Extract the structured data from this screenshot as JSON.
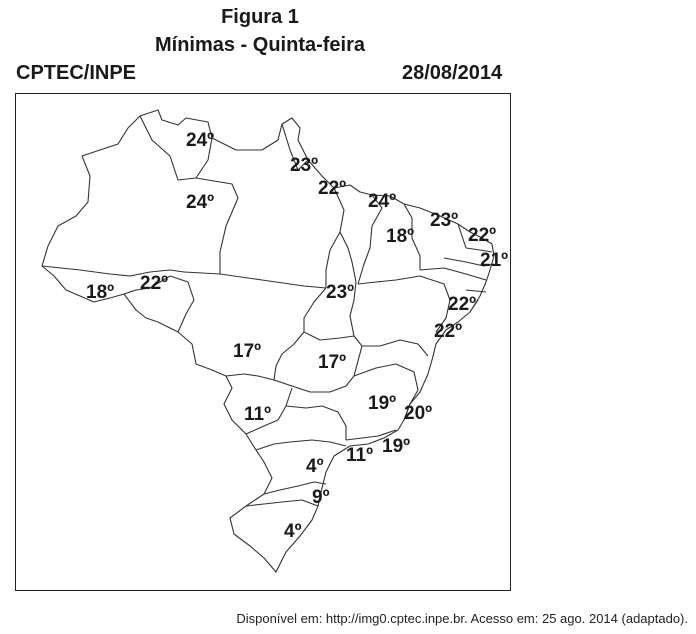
{
  "header": {
    "title": "Figura 1",
    "subtitle": "Mínimas - Quinta-feira",
    "source": "CPTEC/INPE",
    "date": "28/08/2014"
  },
  "map": {
    "temperatures": [
      {
        "state": "Roraima",
        "label": "24º"
      },
      {
        "state": "Amapá",
        "label": "23º"
      },
      {
        "state": "Amazonas",
        "label": "24º"
      },
      {
        "state": "Pará (Belém)",
        "label": "22º"
      },
      {
        "state": "Maranhão",
        "label": "24º"
      },
      {
        "state": "Piauí",
        "label": "18º"
      },
      {
        "state": "Ceará",
        "label": "23º"
      },
      {
        "state": "Rio Grande do Norte",
        "label": "22º"
      },
      {
        "state": "Paraíba",
        "label": "21º"
      },
      {
        "state": "Acre",
        "label": "18º"
      },
      {
        "state": "Rondônia",
        "label": "22º"
      },
      {
        "state": "Tocantins",
        "label": "23º"
      },
      {
        "state": "Alagoas",
        "label": "22º"
      },
      {
        "state": "Sergipe",
        "label": "22º"
      },
      {
        "state": "Mato Grosso",
        "label": "17º"
      },
      {
        "state": "Goiás",
        "label": "17º"
      },
      {
        "state": "Minas Gerais",
        "label": "19º"
      },
      {
        "state": "Espírito Santo",
        "label": "20º"
      },
      {
        "state": "Mato Grosso do Sul",
        "label": "11º"
      },
      {
        "state": "São Paulo",
        "label": "11º"
      },
      {
        "state": "Rio de Janeiro",
        "label": "19º"
      },
      {
        "state": "Paraná",
        "label": "4º"
      },
      {
        "state": "Santa Catarina",
        "label": "9º"
      },
      {
        "state": "Rio Grande do Sul",
        "label": "4º"
      }
    ]
  },
  "footer": {
    "citation": "Disponível em: http://img0.cptec.inpe.br. Acesso em: 25 ago. 2014 (adaptado)."
  }
}
